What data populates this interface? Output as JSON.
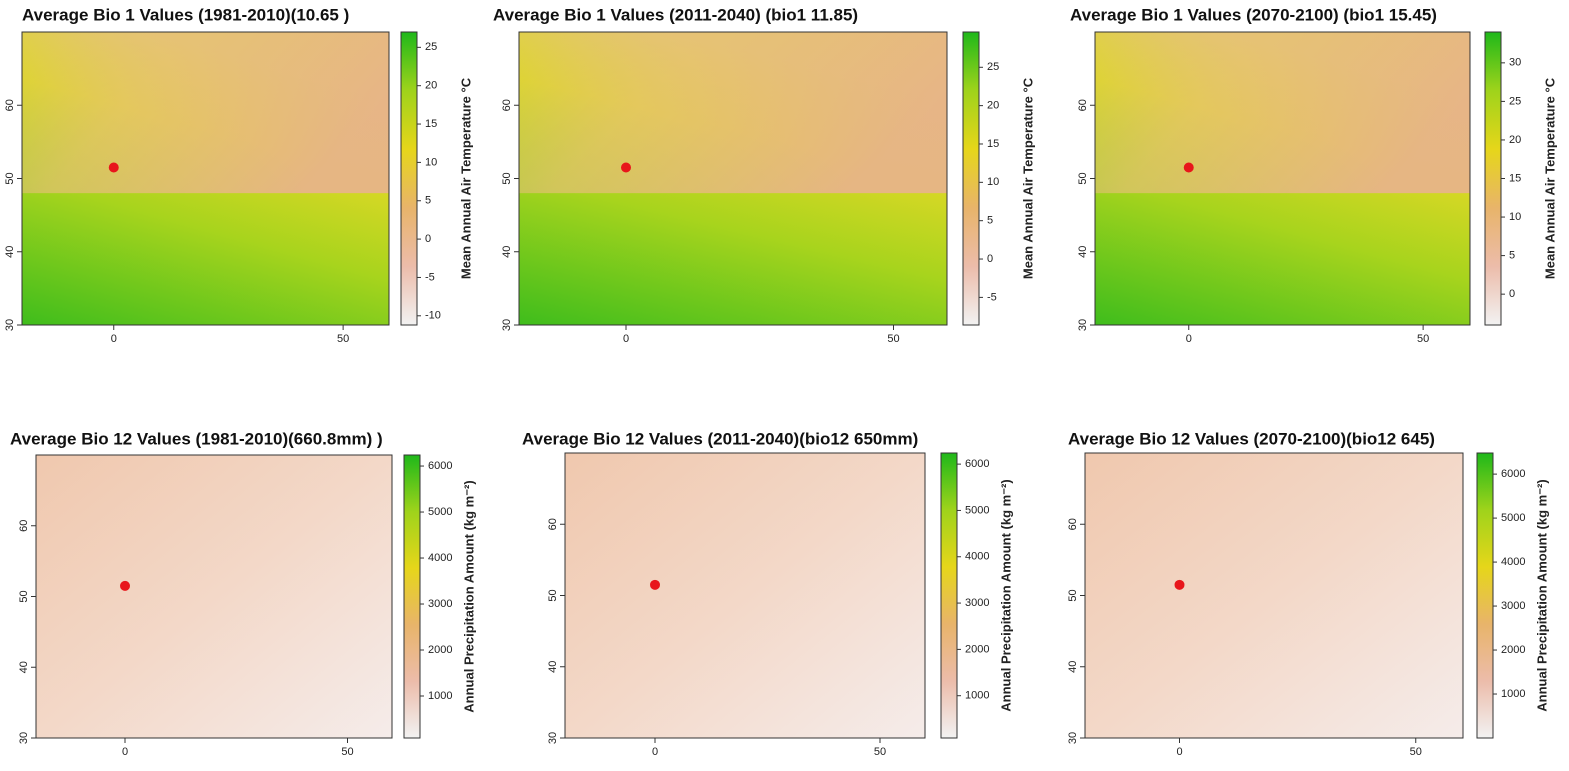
{
  "maps": [
    {
      "title": "Average Bio 1 Values (1981-2010)(10.65 )",
      "xlim": [
        -20,
        60
      ],
      "ylim": [
        30,
        70
      ],
      "xticks": [
        0,
        50
      ],
      "yticks": [
        30,
        40,
        50,
        60
      ],
      "marker": {
        "x": 0,
        "y": 51.5,
        "color": "#e8161b"
      },
      "colorbar": {
        "label": "Mean Annual Air Temperature °C",
        "lim": [
          -11.2,
          27
        ],
        "ticks": [
          -10,
          -5,
          0,
          5,
          10,
          15,
          20,
          25
        ],
        "colors": [
          "#f2f2f2",
          "#ecbcaa",
          "#e8b46a",
          "#e6d61a",
          "#9fd31b",
          "#1fb81a"
        ]
      }
    },
    {
      "title": "Average Bio 1 Values (2011-2040) (bio1 11.85)",
      "xlim": [
        -20,
        60
      ],
      "ylim": [
        30,
        70
      ],
      "xticks": [
        0,
        50
      ],
      "yticks": [
        30,
        40,
        50,
        60
      ],
      "marker": {
        "x": 0,
        "y": 51.5,
        "color": "#e8161b"
      },
      "colorbar": {
        "label": "Mean Annual Air Temperature °C",
        "lim": [
          -8.6,
          29.6
        ],
        "ticks": [
          -5,
          0,
          5,
          10,
          15,
          20,
          25
        ],
        "colors": [
          "#f2f2f2",
          "#ecbcaa",
          "#e8b46a",
          "#e6d61a",
          "#9fd31b",
          "#1fb81a"
        ]
      }
    },
    {
      "title": "Average Bio 1 Values (2070-2100) (bio1 15.45)",
      "xlim": [
        -20,
        60
      ],
      "ylim": [
        30,
        70
      ],
      "xticks": [
        0,
        50
      ],
      "yticks": [
        30,
        40,
        50,
        60
      ],
      "marker": {
        "x": 0,
        "y": 51.5,
        "color": "#e8161b"
      },
      "colorbar": {
        "label": "Mean Annual Air Temperature °C",
        "lim": [
          -4,
          34
        ],
        "ticks": [
          0,
          5,
          10,
          15,
          20,
          25,
          30
        ],
        "colors": [
          "#f2f2f2",
          "#ecbcaa",
          "#e8b46a",
          "#e6d61a",
          "#9fd31b",
          "#1fb81a"
        ]
      }
    },
    {
      "title": "Average Bio 12 Values (1981-2010)(660.8mm) )",
      "xlim": [
        -20,
        60
      ],
      "ylim": [
        30,
        70
      ],
      "xticks": [
        0,
        50
      ],
      "yticks": [
        30,
        40,
        50,
        60
      ],
      "marker": {
        "x": 0,
        "y": 51.5,
        "color": "#e8161b"
      },
      "colorbar": {
        "label": "Annual Precipitation Amount (kg m⁻²)",
        "lim": [
          87,
          6240
        ],
        "ticks": [
          1000,
          2000,
          3000,
          4000,
          5000,
          6000
        ],
        "colors": [
          "#f2f2f2",
          "#ecbcaa",
          "#e8b46a",
          "#e6d61a",
          "#9fd31b",
          "#1fb81a"
        ]
      }
    },
    {
      "title": "Average Bio 12 Values (2011-2040)(bio12  650mm)",
      "xlim": [
        -20,
        60
      ],
      "ylim": [
        30,
        70
      ],
      "xticks": [
        0,
        50
      ],
      "yticks": [
        30,
        40,
        50,
        60
      ],
      "marker": {
        "x": 0,
        "y": 51.5,
        "color": "#e8161b"
      },
      "colorbar": {
        "label": "Annual Precipitation Amount (kg m⁻²)",
        "lim": [
          87,
          6240
        ],
        "ticks": [
          1000,
          2000,
          3000,
          4000,
          5000,
          6000
        ],
        "colors": [
          "#f2f2f2",
          "#ecbcaa",
          "#e8b46a",
          "#e6d61a",
          "#9fd31b",
          "#1fb81a"
        ]
      }
    },
    {
      "title": "Average Bio 12 Values (2070-2100)(bio12 645)",
      "xlim": [
        -20,
        60
      ],
      "ylim": [
        30,
        70
      ],
      "xticks": [
        0,
        50
      ],
      "yticks": [
        30,
        40,
        50,
        60
      ],
      "marker": {
        "x": 0,
        "y": 51.5,
        "color": "#e8161b"
      },
      "colorbar": {
        "label": "Annual Precipitation Amount (kg m⁻²)",
        "lim": [
          0,
          6480
        ],
        "ticks": [
          1000,
          2000,
          3000,
          4000,
          5000,
          6000
        ],
        "colors": [
          "#f2f2f2",
          "#ecbcaa",
          "#e8b46a",
          "#e6d61a",
          "#9fd31b",
          "#1fb81a"
        ]
      }
    }
  ]
}
